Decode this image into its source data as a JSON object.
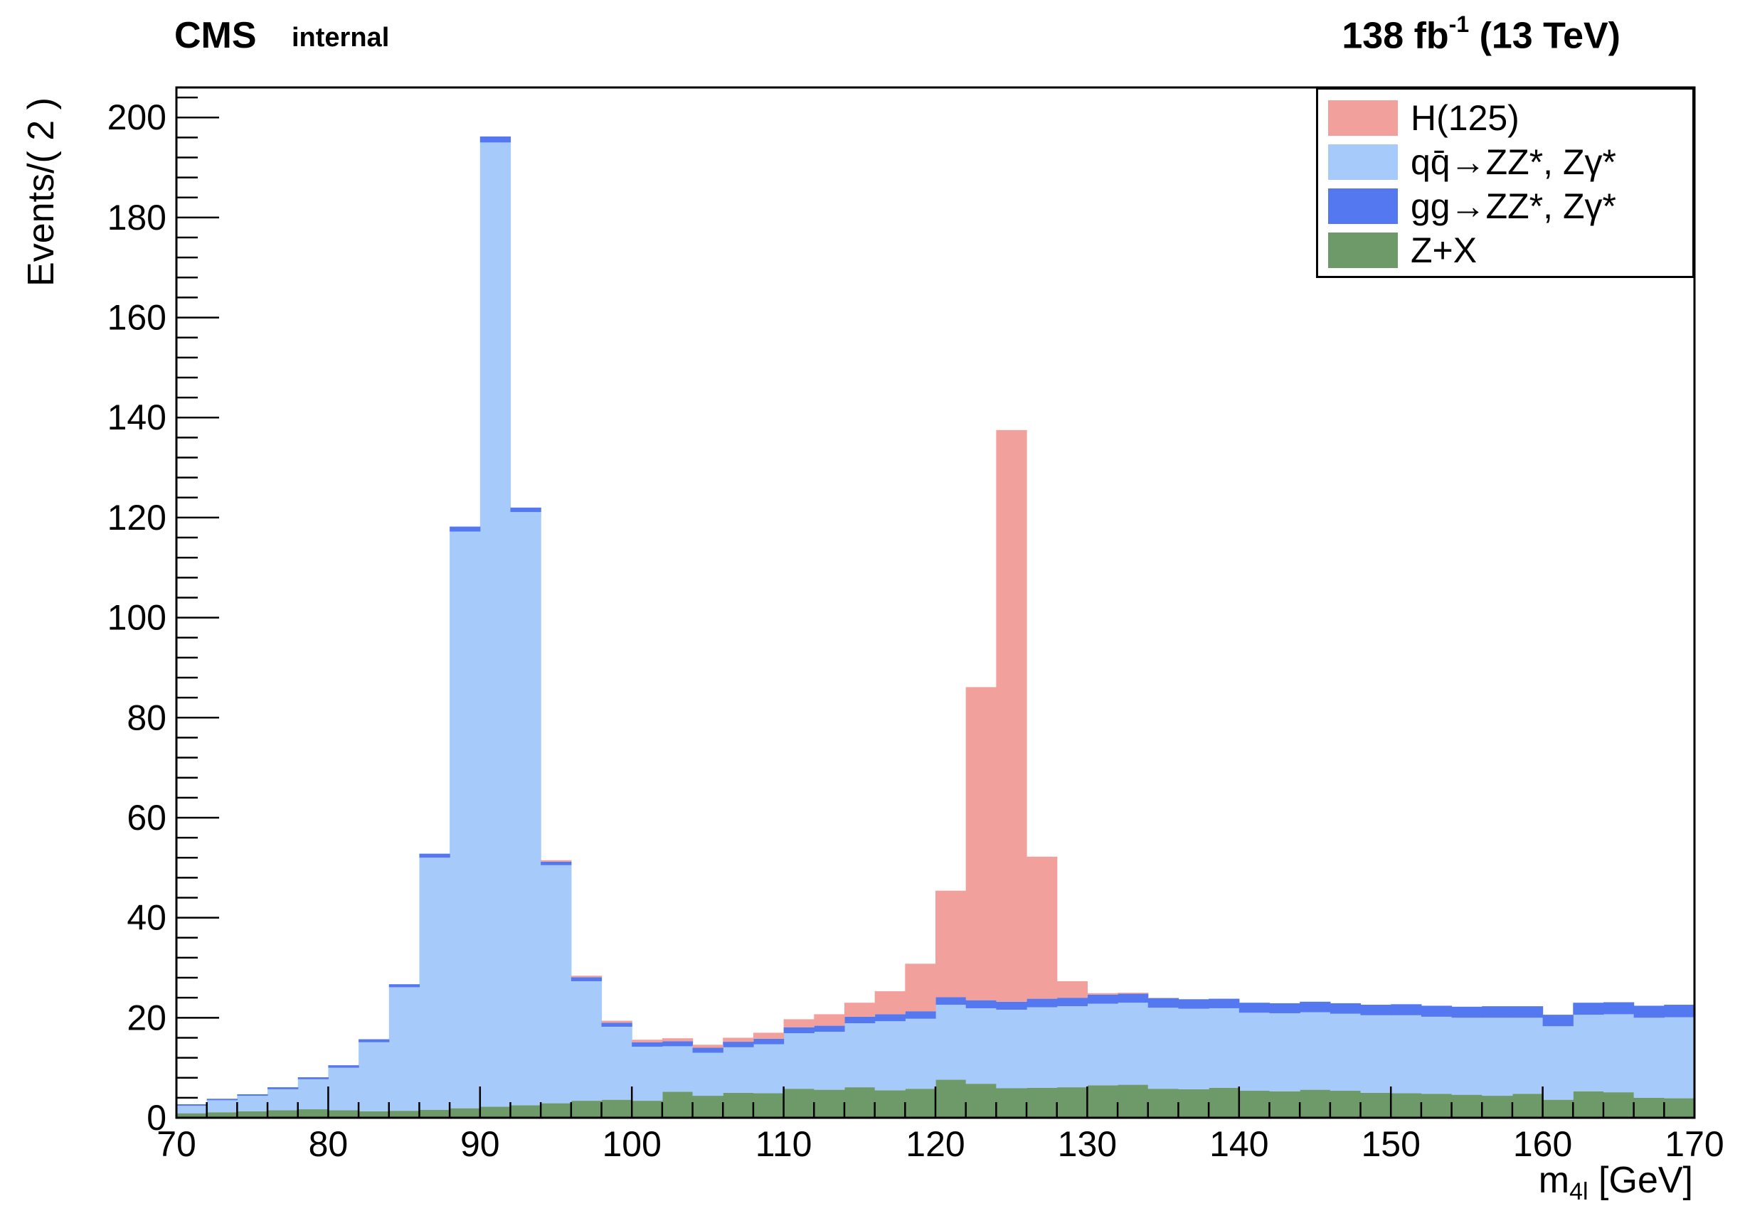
{
  "header": {
    "experiment": "CMS",
    "status": "internal",
    "lumi_value": "138 fb",
    "lumi_exponent": "-1",
    "energy": "(13 TeV)"
  },
  "chart_data": {
    "type": "bar",
    "stacked": true,
    "ylabel": "Events/( 2 )",
    "xlabel_main": "m",
    "xlabel_sub": "4l",
    "xlabel_unit": "[GeV]",
    "xlim": [
      70,
      170
    ],
    "ylim": [
      0,
      206
    ],
    "x_ticks": [
      70,
      80,
      90,
      100,
      110,
      120,
      130,
      140,
      150,
      160,
      170
    ],
    "y_ticks": [
      0,
      20,
      40,
      60,
      80,
      100,
      120,
      140,
      160,
      180,
      200
    ],
    "bin_width": 2,
    "bin_low_edges": [
      70,
      72,
      74,
      76,
      78,
      80,
      82,
      84,
      86,
      88,
      90,
      92,
      94,
      96,
      98,
      100,
      102,
      104,
      106,
      108,
      110,
      112,
      114,
      116,
      118,
      120,
      122,
      124,
      126,
      128,
      130,
      132,
      134,
      136,
      138,
      140,
      142,
      144,
      146,
      148,
      150,
      152,
      154,
      156,
      158,
      160,
      162,
      164,
      166,
      168
    ],
    "legend_position": "top-right",
    "series": [
      {
        "name": "Z+X",
        "color": "#6e9a6a",
        "values": [
          0.9,
          1.1,
          1.3,
          1.5,
          1.7,
          1.5,
          1.3,
          1.4,
          1.6,
          1.9,
          2.2,
          2.5,
          2.9,
          3.4,
          3.6,
          3.4,
          5.2,
          4.4,
          5.0,
          4.9,
          5.8,
          5.6,
          6.1,
          5.5,
          5.8,
          7.6,
          6.8,
          5.9,
          6.0,
          6.1,
          6.5,
          6.6,
          5.8,
          5.7,
          6.0,
          5.4,
          5.3,
          5.6,
          5.4,
          5.0,
          4.9,
          4.8,
          4.6,
          4.4,
          4.8,
          3.6,
          5.3,
          5.1,
          4.0,
          3.9
        ]
      },
      {
        "name": "qq̄→ZZ*, Zγ*",
        "color": "#a6cbfa",
        "values": [
          1.5,
          2.4,
          3.1,
          4.2,
          6.0,
          8.5,
          13.8,
          24.7,
          50.4,
          115.3,
          192.8,
          118.6,
          47.6,
          23.9,
          14.6,
          10.8,
          9.1,
          8.6,
          9.1,
          9.8,
          11.1,
          11.6,
          12.8,
          13.8,
          14.0,
          15.0,
          15.1,
          15.7,
          16.1,
          16.2,
          16.3,
          16.4,
          16.2,
          16.1,
          15.9,
          15.6,
          15.6,
          15.5,
          15.4,
          15.5,
          15.6,
          15.4,
          15.4,
          15.6,
          15.2,
          14.7,
          15.3,
          15.6,
          16.0,
          16.2
        ]
      },
      {
        "name": "gg→ZZ*, Zγ*",
        "color": "#5478ef",
        "values": [
          0.3,
          0.3,
          0.3,
          0.4,
          0.4,
          0.5,
          0.6,
          0.6,
          0.8,
          1.0,
          1.2,
          0.9,
          0.7,
          0.8,
          0.8,
          0.9,
          1.0,
          1.0,
          1.1,
          1.1,
          1.2,
          1.2,
          1.3,
          1.4,
          1.5,
          1.5,
          1.6,
          1.6,
          1.7,
          1.7,
          1.8,
          1.8,
          1.9,
          1.9,
          1.9,
          2.0,
          2.0,
          2.1,
          2.1,
          2.1,
          2.2,
          2.2,
          2.2,
          2.3,
          2.3,
          2.3,
          2.4,
          2.4,
          2.4,
          2.5
        ]
      },
      {
        "name": "H(125)",
        "color": "#f2a09c",
        "values": [
          0,
          0,
          0,
          0,
          0,
          0,
          0,
          0,
          0,
          0,
          0,
          0,
          0.3,
          0.3,
          0.4,
          0.5,
          0.6,
          0.6,
          0.8,
          1.2,
          1.6,
          2.3,
          2.8,
          4.6,
          9.5,
          21.3,
          62.6,
          114.3,
          28.4,
          3.3,
          0.3,
          0.2,
          0.1,
          0,
          0,
          0,
          0,
          0,
          0,
          0,
          0,
          0,
          0,
          0,
          0,
          0,
          0,
          0,
          0,
          0
        ]
      }
    ]
  }
}
